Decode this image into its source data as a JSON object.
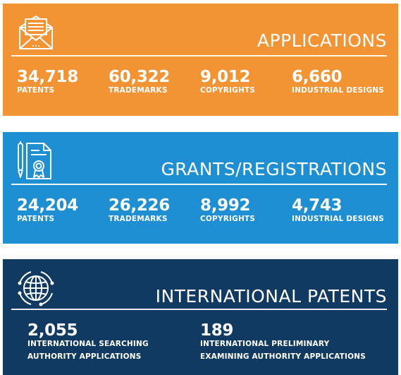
{
  "colors": {
    "applications": "#f39434",
    "grants": "#1e8fd2",
    "international": "#113a62"
  },
  "applications": {
    "icon": "envelope-letter-icon",
    "title": "APPLICATIONS",
    "stats": [
      {
        "value": "34,718",
        "label": "PATENTS"
      },
      {
        "value": "60,322",
        "label": "TRADEMARKS"
      },
      {
        "value": "9,012",
        "label": "COPYRIGHTS"
      },
      {
        "value": "6,660",
        "label": "INDUSTRIAL DESIGNS"
      }
    ]
  },
  "grants": {
    "icon": "certificate-pen-icon",
    "title": "GRANTS/REGISTRATIONS",
    "stats": [
      {
        "value": "24,204",
        "label": "PATENTS"
      },
      {
        "value": "26,226",
        "label": "TRADEMARKS"
      },
      {
        "value": "8,992",
        "label": "COPYRIGHTS"
      },
      {
        "value": "4,743",
        "label": "INDUSTRIAL DESIGNS"
      }
    ]
  },
  "international": {
    "icon": "globe-network-icon",
    "title": "INTERNATIONAL PATENTS",
    "stats": [
      {
        "value": "2,055",
        "label_line1": "INTERNATIONAL SEARCHING",
        "label_line2": "AUTHORITY APPLICATIONS"
      },
      {
        "value": "189",
        "label_line1": "INTERNATIONAL PRELIMINARY",
        "label_line2": "EXAMINING AUTHORITY APPLICATIONS"
      }
    ]
  }
}
